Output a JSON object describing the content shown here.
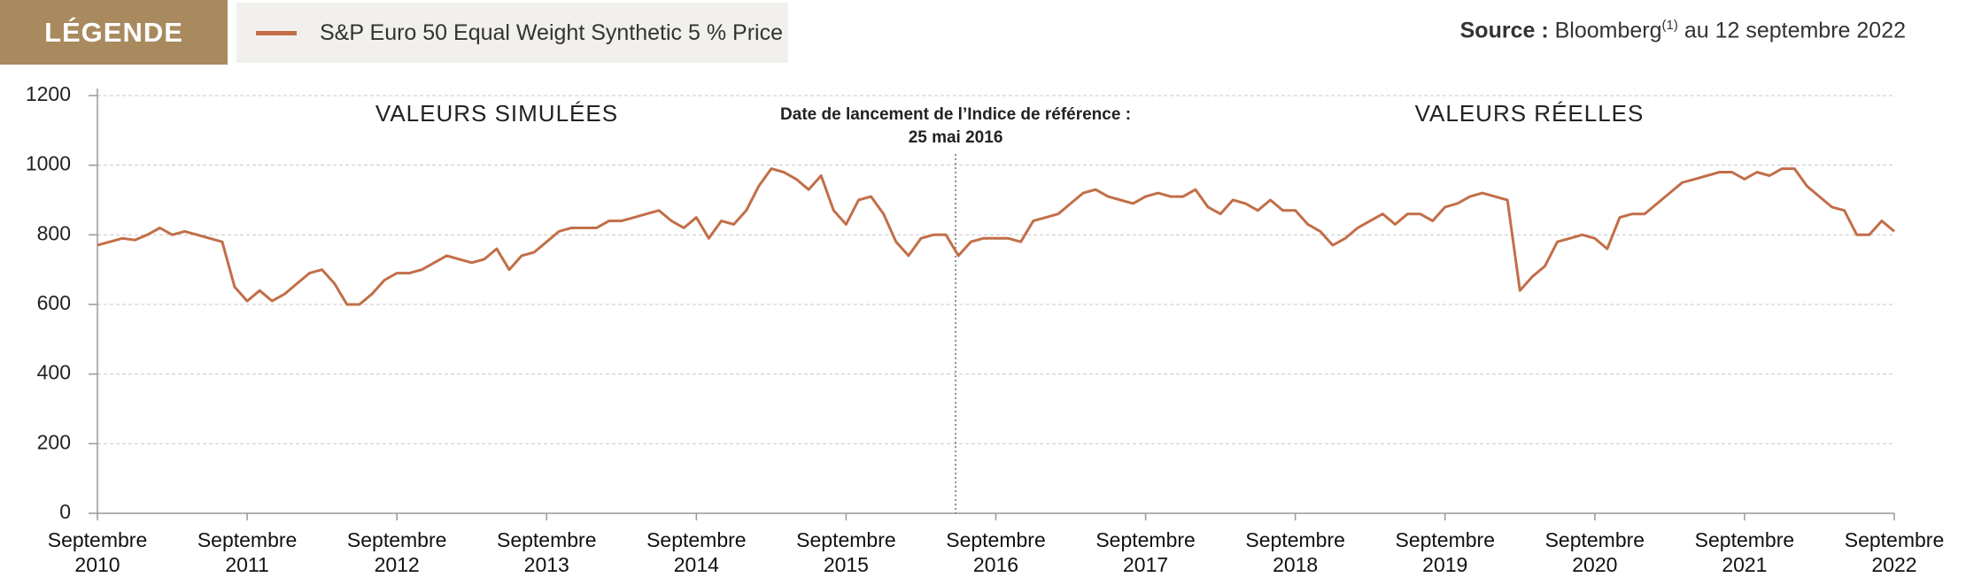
{
  "chart_data": {
    "type": "line",
    "legend_title": "LÉGENDE",
    "source": {
      "label": "Source :",
      "text": "Bloomberg",
      "sup": "(1)",
      "rest": "au 12 septembre 2022"
    },
    "annotations": {
      "simulated": "VALEURS SIMULÉES",
      "real": "VALEURS RÉELLES",
      "launch_line1": "Date de lancement de l’Indice de référence :",
      "launch_line2": "25 mai 2016",
      "launch_x": "2016-05-25"
    },
    "x": [
      "2010-09",
      "2010-10",
      "2010-11",
      "2010-12",
      "2011-01",
      "2011-02",
      "2011-03",
      "2011-04",
      "2011-05",
      "2011-06",
      "2011-07",
      "2011-08",
      "2011-09",
      "2011-10",
      "2011-11",
      "2011-12",
      "2012-01",
      "2012-02",
      "2012-03",
      "2012-04",
      "2012-05",
      "2012-06",
      "2012-07",
      "2012-08",
      "2012-09",
      "2012-10",
      "2012-11",
      "2012-12",
      "2013-01",
      "2013-02",
      "2013-03",
      "2013-04",
      "2013-05",
      "2013-06",
      "2013-07",
      "2013-08",
      "2013-09",
      "2013-10",
      "2013-11",
      "2013-12",
      "2014-01",
      "2014-02",
      "2014-03",
      "2014-04",
      "2014-05",
      "2014-06",
      "2014-07",
      "2014-08",
      "2014-09",
      "2014-10",
      "2014-11",
      "2014-12",
      "2015-01",
      "2015-02",
      "2015-03",
      "2015-04",
      "2015-05",
      "2015-06",
      "2015-07",
      "2015-08",
      "2015-09",
      "2015-10",
      "2015-11",
      "2015-12",
      "2016-01",
      "2016-02",
      "2016-03",
      "2016-04",
      "2016-05",
      "2016-06",
      "2016-07",
      "2016-08",
      "2016-09",
      "2016-10",
      "2016-11",
      "2016-12",
      "2017-01",
      "2017-02",
      "2017-03",
      "2017-04",
      "2017-05",
      "2017-06",
      "2017-07",
      "2017-08",
      "2017-09",
      "2017-10",
      "2017-11",
      "2017-12",
      "2018-01",
      "2018-02",
      "2018-03",
      "2018-04",
      "2018-05",
      "2018-06",
      "2018-07",
      "2018-08",
      "2018-09",
      "2018-10",
      "2018-11",
      "2018-12",
      "2019-01",
      "2019-02",
      "2019-03",
      "2019-04",
      "2019-05",
      "2019-06",
      "2019-07",
      "2019-08",
      "2019-09",
      "2019-10",
      "2019-11",
      "2019-12",
      "2020-01",
      "2020-02",
      "2020-03",
      "2020-04",
      "2020-05",
      "2020-06",
      "2020-07",
      "2020-08",
      "2020-09",
      "2020-10",
      "2020-11",
      "2020-12",
      "2021-01",
      "2021-02",
      "2021-03",
      "2021-04",
      "2021-05",
      "2021-06",
      "2021-07",
      "2021-08",
      "2021-09",
      "2021-10",
      "2021-11",
      "2021-12",
      "2022-01",
      "2022-02",
      "2022-03",
      "2022-04",
      "2022-05",
      "2022-06",
      "2022-07",
      "2022-08",
      "2022-09"
    ],
    "series": [
      {
        "name": "S&P Euro 50 Equal Weight Synthetic 5 % Price",
        "color": "#c26e48",
        "values": [
          770,
          780,
          790,
          785,
          800,
          820,
          800,
          810,
          800,
          790,
          780,
          650,
          610,
          640,
          610,
          630,
          660,
          690,
          700,
          660,
          600,
          600,
          630,
          670,
          690,
          690,
          700,
          720,
          740,
          730,
          720,
          730,
          760,
          700,
          740,
          750,
          780,
          810,
          820,
          820,
          820,
          840,
          840,
          850,
          860,
          870,
          840,
          820,
          850,
          790,
          840,
          830,
          870,
          940,
          990,
          980,
          960,
          930,
          970,
          870,
          830,
          900,
          910,
          860,
          780,
          740,
          790,
          800,
          800,
          740,
          780,
          790,
          790,
          790,
          780,
          840,
          850,
          860,
          890,
          920,
          930,
          910,
          900,
          890,
          910,
          920,
          910,
          910,
          930,
          880,
          860,
          900,
          890,
          870,
          900,
          870,
          870,
          830,
          810,
          770,
          790,
          820,
          840,
          860,
          830,
          860,
          860,
          840,
          880,
          890,
          910,
          920,
          910,
          900,
          640,
          680,
          710,
          780,
          790,
          800,
          790,
          760,
          850,
          860,
          860,
          890,
          920,
          950,
          960,
          970,
          980,
          980,
          960,
          980,
          970,
          990,
          990,
          940,
          910,
          880,
          870,
          800,
          800,
          840,
          810
        ]
      }
    ],
    "xlim": [
      "2010-09",
      "2022-09"
    ],
    "xticks": [
      {
        "value": "2010-09",
        "label": "Septembre 2010"
      },
      {
        "value": "2011-09",
        "label": "Septembre 2011"
      },
      {
        "value": "2012-09",
        "label": "Septembre 2012"
      },
      {
        "value": "2013-09",
        "label": "Septembre 2013"
      },
      {
        "value": "2014-09",
        "label": "Septembre 2014"
      },
      {
        "value": "2015-09",
        "label": "Septembre 2015"
      },
      {
        "value": "2016-09",
        "label": "Septembre 2016"
      },
      {
        "value": "2017-09",
        "label": "Septembre 2017"
      },
      {
        "value": "2018-09",
        "label": "Septembre 2018"
      },
      {
        "value": "2019-09",
        "label": "Septembre 2019"
      },
      {
        "value": "2020-09",
        "label": "Septembre 2020"
      },
      {
        "value": "2021-09",
        "label": "Septembre 2021"
      },
      {
        "value": "2022-09",
        "label": "Septembre 2022"
      }
    ],
    "ylim": [
      0,
      1200
    ],
    "yticks": [
      0,
      200,
      400,
      600,
      800,
      1000,
      1200
    ],
    "grid": true
  }
}
